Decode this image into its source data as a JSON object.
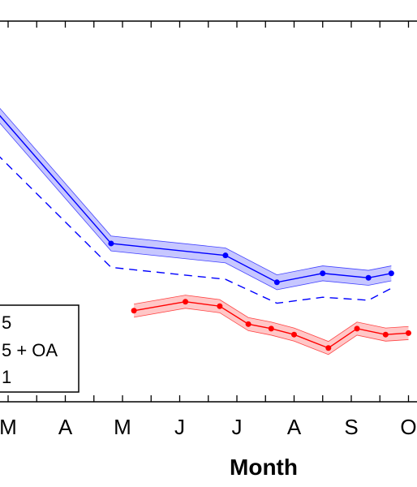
{
  "chart_data": {
    "type": "line",
    "xlabel": "Month",
    "ylabel": "",
    "title": "",
    "categories": [
      "M",
      "A",
      "M",
      "J",
      "J",
      "A",
      "S",
      "O"
    ],
    "grid": false,
    "legend": {
      "placement": "bottom-left",
      "entries": [
        "5",
        "5 + OA",
        "1"
      ]
    },
    "series": [
      {
        "color": "#0000ff",
        "style": "solid-with-band",
        "x": [
          -0.2,
          1.8,
          3.8,
          4.7,
          5.5,
          6.3,
          6.7
        ],
        "y": [
          9.7,
          5.3,
          4.9,
          4.0,
          4.3,
          4.15,
          4.3
        ],
        "band": 0.25
      },
      {
        "color": "#0000ff",
        "style": "dashed",
        "x": [
          -0.2,
          1.8,
          3.8,
          4.7,
          5.5,
          6.3,
          6.7
        ],
        "y": [
          8.3,
          4.5,
          4.1,
          3.3,
          3.5,
          3.4,
          3.8
        ]
      },
      {
        "color": "#ff0000",
        "style": "solid-with-band",
        "x": [
          2.2,
          3.1,
          3.7,
          4.2,
          4.6,
          5.0,
          5.6,
          6.1,
          6.6,
          7.0
        ],
        "y": [
          3.05,
          3.35,
          3.2,
          2.6,
          2.45,
          2.25,
          1.8,
          2.45,
          2.25,
          2.3
        ],
        "band": 0.22
      }
    ]
  }
}
